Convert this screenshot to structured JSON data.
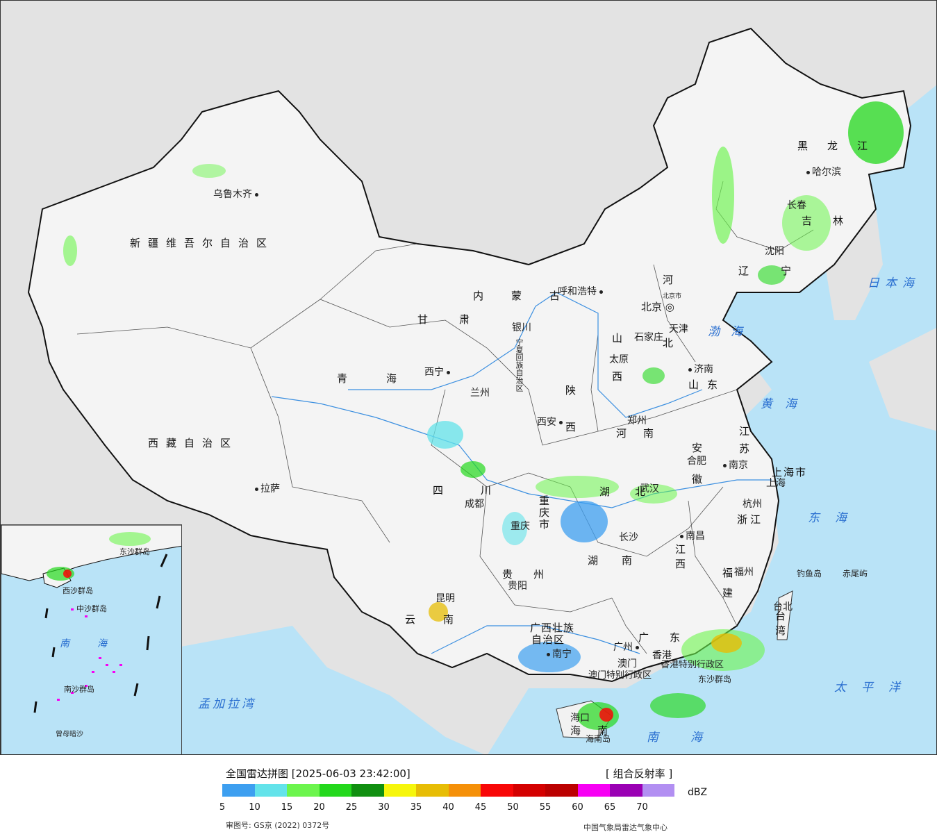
{
  "title": "全国雷达拼图 [2025-06-03 23:42:00]",
  "product": "[ 组合反射率 ]",
  "unit": "dBZ",
  "approval_number": "审图号: GS京 (2022) 0372号",
  "source": "中国气象局雷达气象中心",
  "legend": {
    "colors": [
      "#3d9ff0",
      "#63e3ea",
      "#6cf54d",
      "#23d81c",
      "#108f10",
      "#f6f60c",
      "#e7bd05",
      "#f59008",
      "#f80707",
      "#d40000",
      "#bb0000",
      "#f700f4",
      "#9a00b4",
      "#b28ff2"
    ],
    "ticks": [
      "5",
      "10",
      "15",
      "20",
      "25",
      "30",
      "35",
      "40",
      "45",
      "50",
      "55",
      "60",
      "65",
      "70"
    ]
  },
  "provinces": [
    {
      "text": "新疆维吾尔自治区"
    },
    {
      "text": "西藏自治区"
    },
    {
      "text": "青海"
    },
    {
      "text": "甘肃"
    },
    {
      "text": "内蒙古"
    },
    {
      "text": "四川"
    },
    {
      "text": "云南"
    },
    {
      "text": "贵州"
    },
    {
      "text": "广西壮族"
    },
    {
      "text": "自治区"
    },
    {
      "text": "湖南"
    },
    {
      "text": "湖北"
    },
    {
      "text": "江西"
    },
    {
      "text": "福建"
    },
    {
      "text": "浙江"
    },
    {
      "text": "安徽"
    },
    {
      "text": "江苏"
    },
    {
      "text": "山东"
    },
    {
      "text": "河南"
    },
    {
      "text": "陕西"
    },
    {
      "text": "山西"
    },
    {
      "text": "河北"
    },
    {
      "text": "黑龙江"
    },
    {
      "text": "吉林"
    },
    {
      "text": "辽宁"
    },
    {
      "text": "广东"
    },
    {
      "text": "海南"
    },
    {
      "text": "台湾"
    },
    {
      "text": "重庆市"
    },
    {
      "text": "上海市"
    },
    {
      "text": "宁夏回族自治区"
    },
    {
      "text": "香港特别行政区"
    },
    {
      "text": "澳门特别行政区"
    }
  ],
  "cities": [
    {
      "text": "乌鲁木齐"
    },
    {
      "text": "拉萨"
    },
    {
      "text": "西宁"
    },
    {
      "text": "兰州"
    },
    {
      "text": "银川"
    },
    {
      "text": "呼和浩特"
    },
    {
      "text": "北京"
    },
    {
      "text": "北京市"
    },
    {
      "text": "天津"
    },
    {
      "text": "石家庄"
    },
    {
      "text": "太原"
    },
    {
      "text": "济南"
    },
    {
      "text": "郑州"
    },
    {
      "text": "西安"
    },
    {
      "text": "成都"
    },
    {
      "text": "重庆"
    },
    {
      "text": "贵阳"
    },
    {
      "text": "昆明"
    },
    {
      "text": "南宁"
    },
    {
      "text": "长沙"
    },
    {
      "text": "武汉"
    },
    {
      "text": "南昌"
    },
    {
      "text": "合肥"
    },
    {
      "text": "南京"
    },
    {
      "text": "上海"
    },
    {
      "text": "杭州"
    },
    {
      "text": "福州"
    },
    {
      "text": "台北"
    },
    {
      "text": "广州"
    },
    {
      "text": "香港"
    },
    {
      "text": "澳门"
    },
    {
      "text": "海口"
    },
    {
      "text": "沈阳"
    },
    {
      "text": "长春"
    },
    {
      "text": "哈尔滨"
    }
  ],
  "seas": [
    {
      "text": "日本海"
    },
    {
      "text": "渤海"
    },
    {
      "text": "黄海"
    },
    {
      "text": "东海"
    },
    {
      "text": "太平洋"
    },
    {
      "text": "南海"
    },
    {
      "text": "孟加拉湾"
    }
  ],
  "islands": [
    {
      "text": "钓鱼岛"
    },
    {
      "text": "赤尾屿"
    },
    {
      "text": "东沙群岛"
    },
    {
      "text": "海南岛"
    }
  ],
  "inset_labels": [
    {
      "text": "南海"
    },
    {
      "text": "东沙群岛"
    },
    {
      "text": "西沙群岛"
    },
    {
      "text": "中沙群岛"
    },
    {
      "text": "南沙群岛"
    },
    {
      "text": "曾母暗沙"
    }
  ]
}
